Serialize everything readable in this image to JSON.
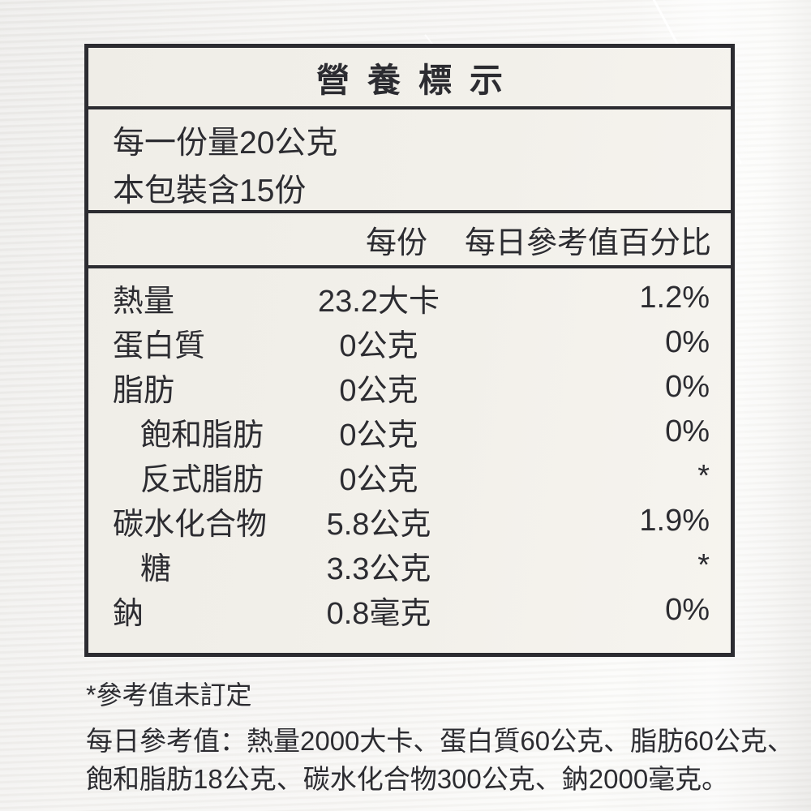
{
  "colors": {
    "ink": "#2c2c31",
    "label_bg": "#f0eee8"
  },
  "nutrition_label": {
    "title": "營養標示",
    "serving_lines": [
      "每一份量20公克",
      "本包裝含15份"
    ],
    "column_headers": {
      "per_serving": "每份",
      "daily_value": "每日參考值百分比"
    },
    "rows": [
      {
        "name": "熱量",
        "amount": "23.2大卡",
        "dv": "1.2%"
      },
      {
        "name": "蛋白質",
        "amount": "0公克",
        "dv": "0%"
      },
      {
        "name": "脂肪",
        "amount": "0公克",
        "dv": "0%"
      },
      {
        "name": "飽和脂肪",
        "amount": "0公克",
        "dv": "0%"
      },
      {
        "name": "反式脂肪",
        "amount": "0公克",
        "dv": "*"
      },
      {
        "name": "碳水化合物",
        "amount": "5.8公克",
        "dv": "1.9%"
      },
      {
        "name": "糖",
        "amount": "3.3公克",
        "dv": "*"
      },
      {
        "name": "鈉",
        "amount": "0.8毫克",
        "dv": "0%"
      }
    ],
    "footnote_asterisk": "*參考值未訂定",
    "footnote_daily_lines": [
      "每日參考值：熱量2000大卡、蛋白質60公克、脂肪60公克、",
      "飽和脂肪18公克、碳水化合物300公克、鈉2000毫克。"
    ]
  }
}
